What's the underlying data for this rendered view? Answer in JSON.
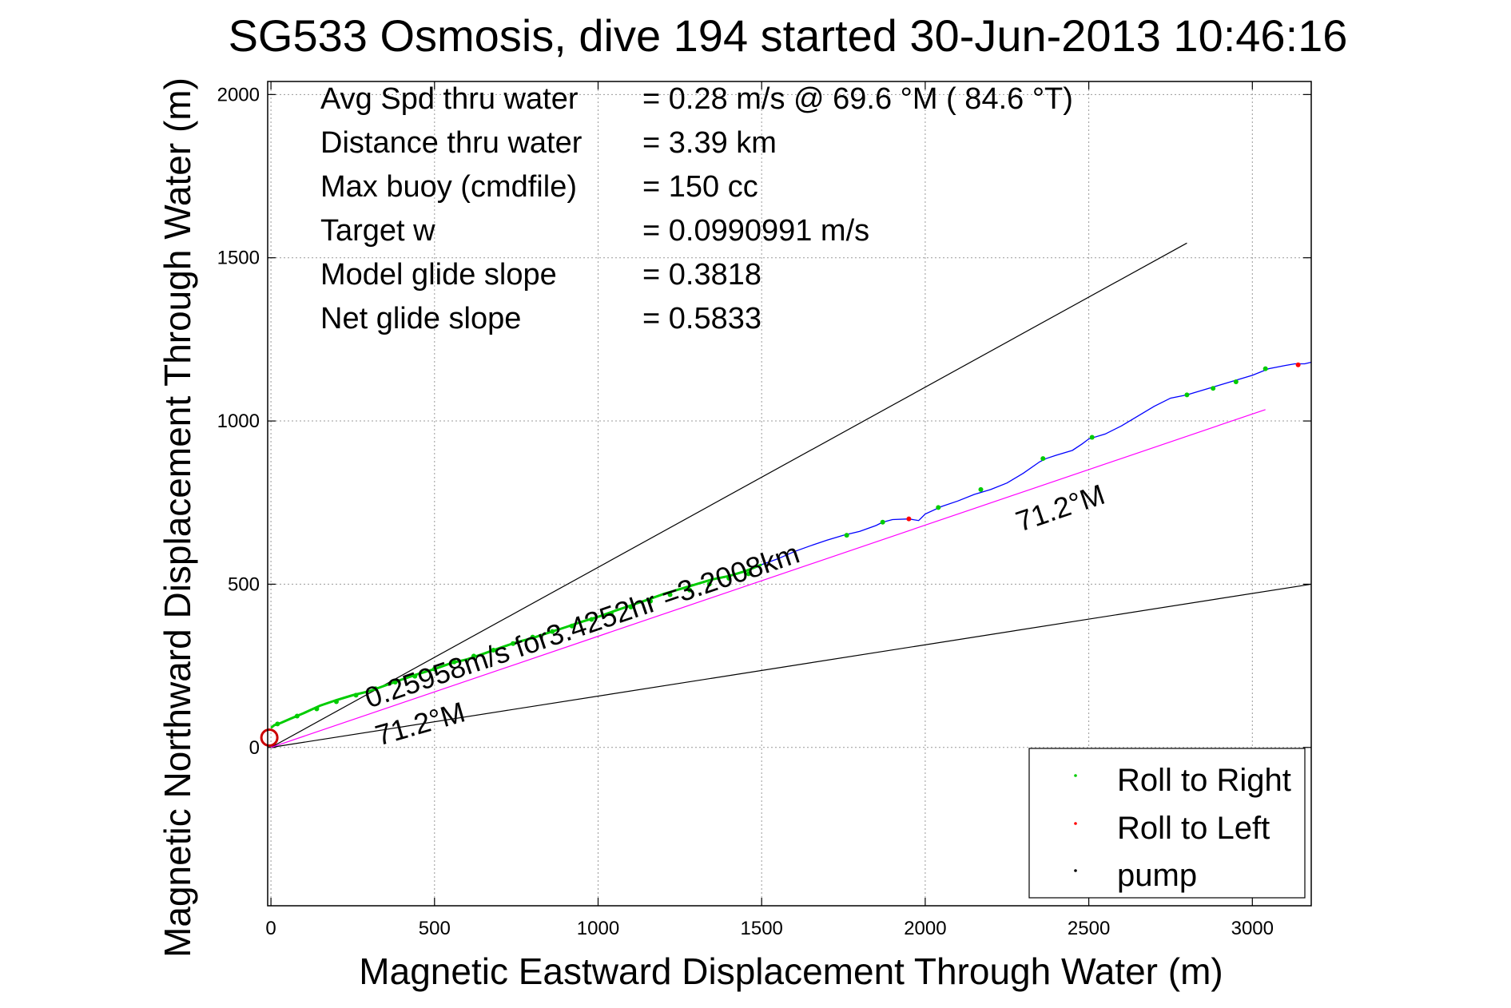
{
  "chart_data": {
    "type": "line",
    "title": "SG533 Osmosis, dive 194 started 30-Jun-2013 10:46:16",
    "xlabel": "Magnetic Eastward Displacement Through Water (m)",
    "ylabel": "Magnetic Northward Displacement Through Water (m)",
    "xlim": [
      -10,
      3180
    ],
    "ylim": [
      -485,
      2040
    ],
    "xticks": [
      0,
      500,
      1000,
      1500,
      2000,
      2500,
      3000
    ],
    "yticks": [
      0,
      500,
      1000,
      1500,
      2000
    ],
    "grid": true,
    "legend_position": "bottom-right",
    "stats": [
      {
        "label": "Avg Spd thru water",
        "value": "=  0.28 m/s @  69.6 °M ( 84.6 °T)"
      },
      {
        "label": "Distance thru water",
        "value": "=  3.39 km"
      },
      {
        "label": "Max buoy (cmdfile)",
        "value": "= 150 cc"
      },
      {
        "label": "Target w",
        "value": "= 0.0990991 m/s"
      },
      {
        "label": "Model glide slope",
        "value": "= 0.3818"
      },
      {
        "label": "Net glide slope",
        "value": "= 0.5833"
      }
    ],
    "annotations": {
      "course_label": "71.2°M",
      "course_label_2": "71.2°M",
      "speed_label": "0.25958m/s for3.4252hr =3.2008km"
    },
    "series": [
      {
        "name": "track",
        "color": "#0000ff",
        "x": [
          0,
          10,
          30,
          60,
          100,
          150,
          200,
          250,
          300,
          350,
          400,
          450,
          500,
          550,
          600,
          650,
          700,
          750,
          800,
          850,
          900,
          950,
          1000,
          1050,
          1100,
          1150,
          1200,
          1250,
          1300,
          1350,
          1400,
          1450,
          1500,
          1550,
          1600,
          1650,
          1700,
          1750,
          1800,
          1850,
          1870,
          1900,
          1950,
          1980,
          2000,
          2050,
          2100,
          2150,
          2200,
          2250,
          2300,
          2350,
          2370,
          2400,
          2450,
          2480,
          2500,
          2550,
          2600,
          2650,
          2700,
          2750,
          2800,
          2850,
          2900,
          2950,
          3000,
          3050,
          3100,
          3130,
          3160,
          3180
        ],
        "y": [
          60,
          68,
          75,
          88,
          105,
          128,
          145,
          160,
          172,
          190,
          208,
          225,
          240,
          258,
          270,
          287,
          305,
          322,
          335,
          352,
          368,
          385,
          400,
          418,
          435,
          452,
          470,
          485,
          500,
          515,
          525,
          540,
          560,
          578,
          600,
          618,
          635,
          650,
          662,
          680,
          690,
          698,
          700,
          695,
          715,
          738,
          755,
          775,
          790,
          810,
          840,
          875,
          885,
          895,
          910,
          930,
          945,
          960,
          985,
          1015,
          1045,
          1070,
          1080,
          1095,
          1110,
          1125,
          1140,
          1160,
          1170,
          1175,
          1175,
          1180
        ]
      },
      {
        "name": "Roll to Right",
        "color": "#00cc00",
        "type": "scatter",
        "x": [
          20,
          80,
          140,
          200,
          260,
          320,
          380,
          440,
          500,
          560,
          620,
          680,
          740,
          800,
          860,
          920,
          980,
          1040,
          1100,
          1160,
          1220,
          1280,
          1340,
          1400,
          1460,
          1760,
          1870,
          2040,
          2170,
          2360,
          2510,
          2800,
          2880,
          2950,
          3040
        ],
        "y": [
          72,
          96,
          118,
          140,
          160,
          180,
          200,
          218,
          240,
          262,
          280,
          298,
          318,
          338,
          355,
          372,
          392,
          410,
          430,
          448,
          468,
          482,
          500,
          518,
          532,
          650,
          690,
          735,
          790,
          885,
          950,
          1080,
          1100,
          1120,
          1160
        ]
      },
      {
        "name": "Roll to Left",
        "color": "#ff0000",
        "type": "scatter",
        "x": [
          1950,
          3140
        ],
        "y": [
          700,
          1172
        ]
      },
      {
        "name": "pump",
        "color": "#000000",
        "type": "scatter",
        "x": [],
        "y": []
      }
    ],
    "reference_lines": [
      {
        "name": "upper-bound",
        "color": "#000000",
        "x": [
          0,
          2800
        ],
        "y": [
          0,
          1545
        ]
      },
      {
        "name": "lower-bound",
        "color": "#000000",
        "x": [
          0,
          3180
        ],
        "y": [
          0,
          500
        ]
      },
      {
        "name": "heading",
        "color": "#ff00ff",
        "x": [
          0,
          3040
        ],
        "y": [
          0,
          1035
        ]
      }
    ],
    "legend": [
      "Roll to Right",
      "Roll to Left",
      "pump"
    ]
  }
}
